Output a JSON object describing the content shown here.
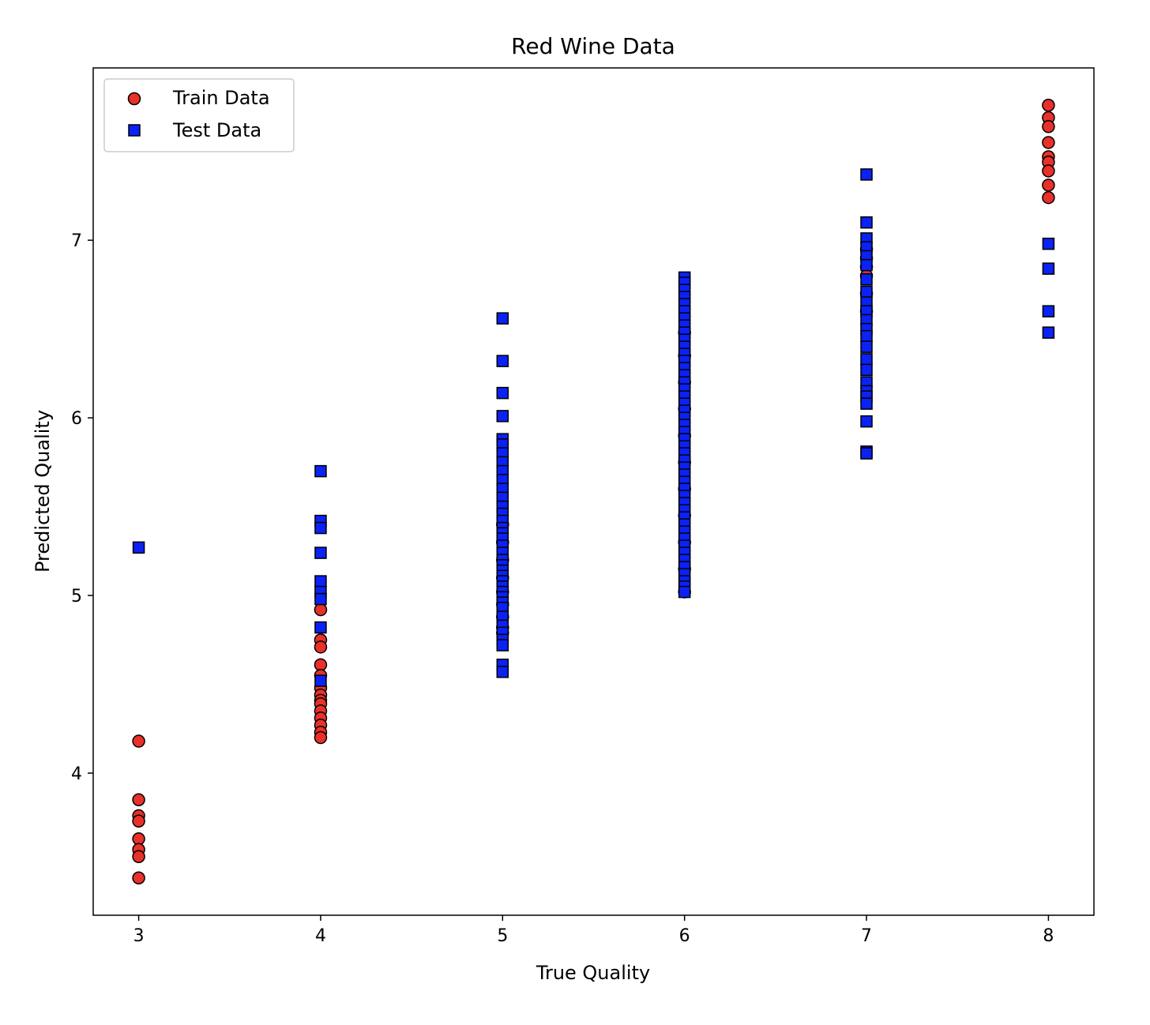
{
  "chart_data": {
    "type": "scatter",
    "title": "Red Wine Data",
    "xlabel": "True Quality",
    "ylabel": "Predicted Quality",
    "xlim": [
      2.75,
      8.25
    ],
    "ylim": [
      3.2,
      7.97
    ],
    "xticks": [
      3,
      4,
      5,
      6,
      7,
      8
    ],
    "yticks": [
      4,
      5,
      6,
      7
    ],
    "grid": false,
    "legend_position": "top-left",
    "series": [
      {
        "name": "Train Data",
        "marker": "circle",
        "color": "#e8312a",
        "edge_color": "#000000",
        "points": [
          [
            3,
            4.18
          ],
          [
            3,
            3.85
          ],
          [
            3,
            3.76
          ],
          [
            3,
            3.73
          ],
          [
            3,
            3.63
          ],
          [
            3,
            3.57
          ],
          [
            3,
            3.53
          ],
          [
            3,
            3.41
          ],
          [
            4,
            4.92
          ],
          [
            4,
            4.75
          ],
          [
            4,
            4.71
          ],
          [
            4,
            4.61
          ],
          [
            4,
            4.55
          ],
          [
            4,
            4.48
          ],
          [
            4,
            4.44
          ],
          [
            4,
            4.41
          ],
          [
            4,
            4.39
          ],
          [
            4,
            4.35
          ],
          [
            4,
            4.31
          ],
          [
            4,
            4.27
          ],
          [
            4,
            4.23
          ],
          [
            4,
            4.2
          ],
          [
            5,
            4.79
          ],
          [
            5,
            4.82
          ],
          [
            5,
            4.88
          ],
          [
            5,
            4.95
          ],
          [
            5,
            5.02
          ],
          [
            5,
            5.1
          ],
          [
            5,
            5.2
          ],
          [
            5,
            5.3
          ],
          [
            5,
            5.4
          ],
          [
            6,
            5.02
          ],
          [
            6,
            5.15
          ],
          [
            6,
            5.3
          ],
          [
            6,
            5.45
          ],
          [
            6,
            5.6
          ],
          [
            6,
            5.75
          ],
          [
            6,
            5.9
          ],
          [
            6,
            6.05
          ],
          [
            6,
            6.2
          ],
          [
            6,
            6.35
          ],
          [
            6,
            6.48
          ],
          [
            7,
            6.85
          ],
          [
            7,
            6.9
          ],
          [
            7,
            6.95
          ],
          [
            7,
            6.8
          ],
          [
            7,
            6.7
          ],
          [
            7,
            6.6
          ],
          [
            8,
            7.76
          ],
          [
            8,
            7.69
          ],
          [
            8,
            7.64
          ],
          [
            8,
            7.55
          ],
          [
            8,
            7.47
          ],
          [
            8,
            7.44
          ],
          [
            8,
            7.39
          ],
          [
            8,
            7.31
          ],
          [
            8,
            7.24
          ]
        ]
      },
      {
        "name": "Test Data",
        "marker": "square",
        "color": "#0a22f5",
        "edge_color": "#000000",
        "points": [
          [
            3,
            5.27
          ],
          [
            4,
            5.7
          ],
          [
            4,
            5.42
          ],
          [
            4,
            5.38
          ],
          [
            4,
            5.24
          ],
          [
            4,
            5.08
          ],
          [
            4,
            5.02
          ],
          [
            4,
            4.98
          ],
          [
            4,
            4.82
          ],
          [
            4,
            4.52
          ],
          [
            5,
            6.56
          ],
          [
            5,
            6.32
          ],
          [
            5,
            6.14
          ],
          [
            5,
            6.01
          ],
          [
            5,
            5.88
          ],
          [
            5,
            5.85
          ],
          [
            5,
            5.8
          ],
          [
            5,
            5.75
          ],
          [
            5,
            5.7
          ],
          [
            5,
            5.65
          ],
          [
            5,
            5.6
          ],
          [
            5,
            5.55
          ],
          [
            5,
            5.5
          ],
          [
            5,
            5.46
          ],
          [
            5,
            5.42
          ],
          [
            5,
            5.38
          ],
          [
            5,
            5.35
          ],
          [
            5,
            5.32
          ],
          [
            5,
            5.28
          ],
          [
            5,
            5.24
          ],
          [
            5,
            5.2
          ],
          [
            5,
            5.17
          ],
          [
            5,
            5.14
          ],
          [
            5,
            5.11
          ],
          [
            5,
            5.08
          ],
          [
            5,
            5.05
          ],
          [
            5,
            5.02
          ],
          [
            5,
            4.99
          ],
          [
            5,
            4.96
          ],
          [
            5,
            4.93
          ],
          [
            5,
            4.88
          ],
          [
            5,
            4.83
          ],
          [
            5,
            4.79
          ],
          [
            5,
            4.75
          ],
          [
            5,
            4.72
          ],
          [
            5,
            4.61
          ],
          [
            5,
            4.57
          ],
          [
            6,
            6.79
          ],
          [
            6,
            6.76
          ],
          [
            6,
            6.72
          ],
          [
            6,
            6.68
          ],
          [
            6,
            6.64
          ],
          [
            6,
            6.6
          ],
          [
            6,
            6.56
          ],
          [
            6,
            6.52
          ],
          [
            6,
            6.48
          ],
          [
            6,
            6.44
          ],
          [
            6,
            6.4
          ],
          [
            6,
            6.36
          ],
          [
            6,
            6.32
          ],
          [
            6,
            6.28
          ],
          [
            6,
            6.24
          ],
          [
            6,
            6.2
          ],
          [
            6,
            6.16
          ],
          [
            6,
            6.12
          ],
          [
            6,
            6.08
          ],
          [
            6,
            6.04
          ],
          [
            6,
            6.0
          ],
          [
            6,
            5.96
          ],
          [
            6,
            5.92
          ],
          [
            6,
            5.88
          ],
          [
            6,
            5.84
          ],
          [
            6,
            5.8
          ],
          [
            6,
            5.76
          ],
          [
            6,
            5.72
          ],
          [
            6,
            5.68
          ],
          [
            6,
            5.64
          ],
          [
            6,
            5.6
          ],
          [
            6,
            5.56
          ],
          [
            6,
            5.52
          ],
          [
            6,
            5.48
          ],
          [
            6,
            5.44
          ],
          [
            6,
            5.4
          ],
          [
            6,
            5.36
          ],
          [
            6,
            5.32
          ],
          [
            6,
            5.28
          ],
          [
            6,
            5.24
          ],
          [
            6,
            5.2
          ],
          [
            6,
            5.16
          ],
          [
            6,
            5.12
          ],
          [
            6,
            5.08
          ],
          [
            6,
            5.05
          ],
          [
            6,
            5.02
          ],
          [
            7,
            7.37
          ],
          [
            7,
            7.1
          ],
          [
            7,
            7.01
          ],
          [
            7,
            6.96
          ],
          [
            7,
            6.91
          ],
          [
            7,
            6.86
          ],
          [
            7,
            6.78
          ],
          [
            7,
            6.71
          ],
          [
            7,
            6.65
          ],
          [
            7,
            6.6
          ],
          [
            7,
            6.55
          ],
          [
            7,
            6.5
          ],
          [
            7,
            6.46
          ],
          [
            7,
            6.4
          ],
          [
            7,
            6.33
          ],
          [
            7,
            6.27
          ],
          [
            7,
            6.2
          ],
          [
            7,
            6.15
          ],
          [
            7,
            6.12
          ],
          [
            7,
            6.08
          ],
          [
            7,
            5.98
          ],
          [
            7,
            5.81
          ],
          [
            7,
            5.8
          ],
          [
            8,
            6.98
          ],
          [
            8,
            6.84
          ],
          [
            8,
            6.6
          ],
          [
            8,
            6.48
          ]
        ]
      }
    ]
  }
}
